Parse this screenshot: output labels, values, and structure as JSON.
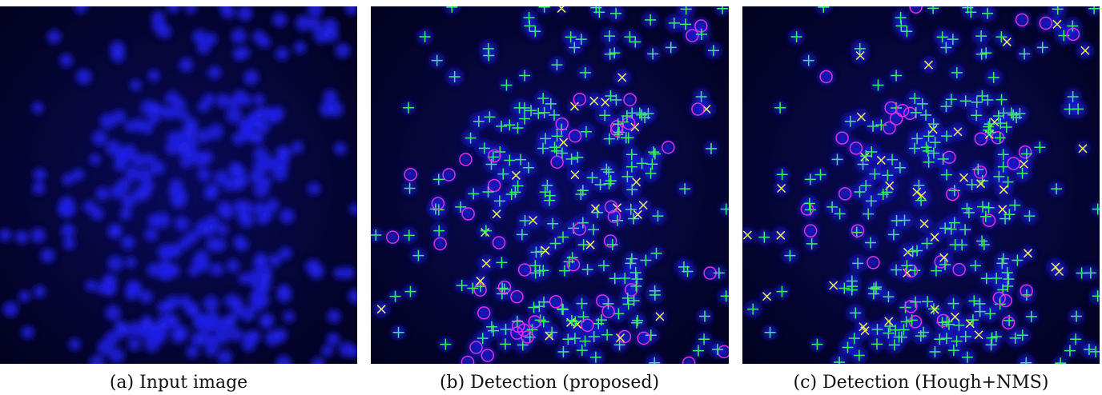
{
  "figure": {
    "panels": [
      {
        "caption": "(a) Input image"
      },
      {
        "caption": "(b) Detection (proposed)"
      },
      {
        "caption": "(c) Detection (Hough+NMS)"
      }
    ]
  }
}
